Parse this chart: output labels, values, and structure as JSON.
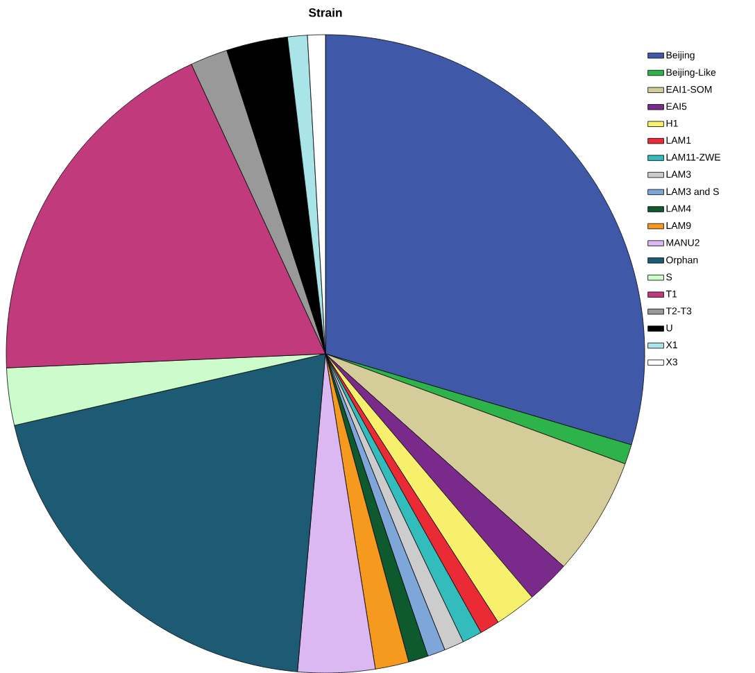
{
  "chart_data": {
    "type": "pie",
    "title": "Strain",
    "legend": "right",
    "categories": [
      "Beijing",
      "Beijing-Like",
      "EAI1-SOM",
      "EAI5",
      "H1",
      "LAM1",
      "LAM11-ZWE",
      "LAM3",
      "LAM3 and S",
      "LAM4",
      "LAM9",
      "MANU2",
      "Orphan",
      "S",
      "T1",
      "T2-T3",
      "U",
      "X1",
      "X3"
    ],
    "values": [
      29.6,
      1.0,
      6.0,
      2.2,
      2.1,
      1.0,
      1.0,
      1.0,
      0.9,
      1.0,
      1.7,
      3.9,
      20.0,
      2.9,
      18.8,
      1.9,
      3.1,
      1.0,
      0.9
    ],
    "colors": [
      "#3f58a8",
      "#2db34a",
      "#d4cd99",
      "#7a2a8a",
      "#f7f06c",
      "#ea2b36",
      "#33bcbc",
      "#cccccc",
      "#7ea6d9",
      "#0e5a2e",
      "#f59a1e",
      "#dcb8f2",
      "#1c5b73",
      "#ccfccc",
      "#c03a7c",
      "#999999",
      "#000000",
      "#a8e4e8",
      "#ffffff"
    ]
  }
}
